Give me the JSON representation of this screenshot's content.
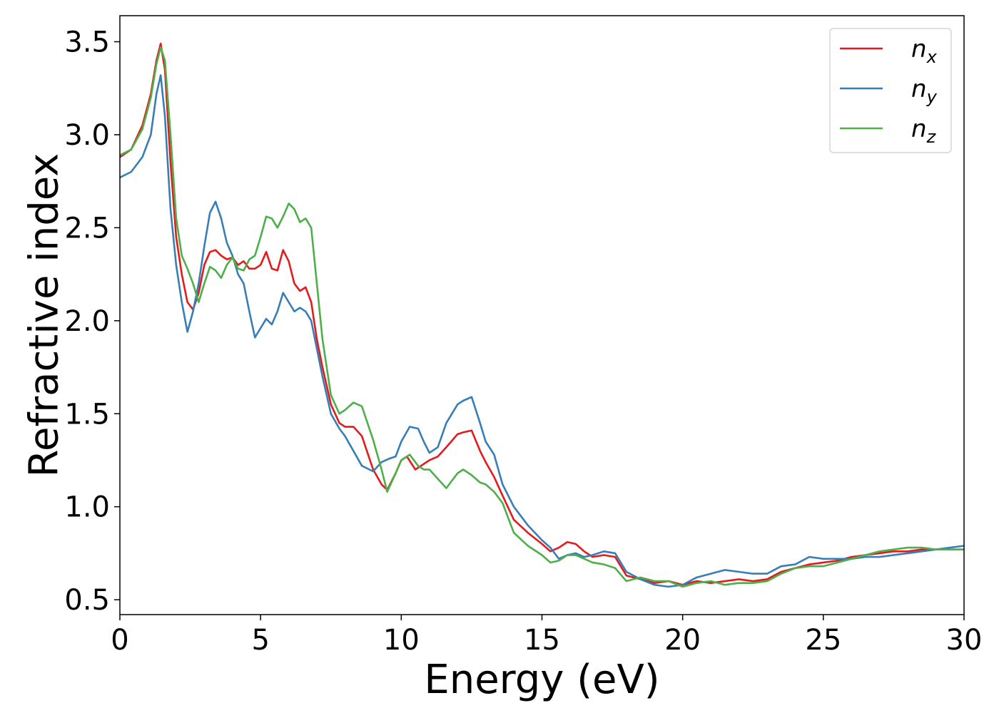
{
  "chart_data": {
    "type": "line",
    "title": "",
    "xlabel": "Energy (eV)",
    "ylabel": "Refractive index",
    "xlim": [
      0,
      30
    ],
    "ylim": [
      0.42,
      3.64
    ],
    "xticks": [
      0,
      5,
      10,
      15,
      20,
      25,
      30
    ],
    "yticks": [
      0.5,
      1.0,
      1.5,
      2.0,
      2.5,
      3.0,
      3.5
    ],
    "grid": false,
    "legend_position": "top-right",
    "series": [
      {
        "name": "n",
        "subscript": "x",
        "color": "#e41a1c",
        "x": [
          0,
          0.4,
          0.8,
          1.1,
          1.3,
          1.45,
          1.6,
          1.8,
          2.0,
          2.2,
          2.4,
          2.6,
          2.8,
          3.0,
          3.2,
          3.4,
          3.6,
          3.8,
          4.0,
          4.2,
          4.4,
          4.6,
          4.8,
          5.0,
          5.2,
          5.4,
          5.6,
          5.8,
          6.0,
          6.2,
          6.4,
          6.6,
          6.8,
          7.0,
          7.2,
          7.5,
          7.8,
          8.0,
          8.3,
          8.6,
          9.0,
          9.3,
          9.5,
          9.8,
          10.0,
          10.2,
          10.5,
          10.8,
          11.0,
          11.3,
          11.6,
          12.0,
          12.2,
          12.5,
          12.8,
          13.0,
          13.3,
          13.6,
          14.0,
          14.5,
          15.0,
          15.3,
          15.6,
          15.9,
          16.2,
          16.5,
          16.8,
          17.2,
          17.6,
          18.0,
          18.5,
          19.0,
          19.5,
          20.0,
          20.5,
          21.0,
          21.5,
          22.0,
          22.5,
          23.0,
          23.5,
          24.0,
          24.5,
          25.0,
          25.5,
          26.0,
          26.5,
          27.0,
          27.5,
          28.0,
          28.5,
          29.0,
          29.5,
          30.0
        ],
        "y": [
          2.88,
          2.92,
          3.05,
          3.22,
          3.4,
          3.49,
          3.35,
          2.85,
          2.45,
          2.25,
          2.1,
          2.06,
          2.15,
          2.3,
          2.37,
          2.38,
          2.35,
          2.33,
          2.34,
          2.3,
          2.32,
          2.28,
          2.28,
          2.3,
          2.37,
          2.28,
          2.27,
          2.38,
          2.32,
          2.2,
          2.16,
          2.18,
          2.1,
          1.9,
          1.75,
          1.55,
          1.45,
          1.43,
          1.43,
          1.38,
          1.2,
          1.12,
          1.09,
          1.18,
          1.25,
          1.27,
          1.2,
          1.23,
          1.25,
          1.27,
          1.32,
          1.39,
          1.4,
          1.41,
          1.3,
          1.24,
          1.16,
          1.06,
          0.93,
          0.86,
          0.8,
          0.76,
          0.78,
          0.81,
          0.8,
          0.76,
          0.73,
          0.74,
          0.73,
          0.63,
          0.61,
          0.59,
          0.6,
          0.58,
          0.6,
          0.59,
          0.6,
          0.61,
          0.6,
          0.61,
          0.65,
          0.67,
          0.69,
          0.7,
          0.71,
          0.73,
          0.74,
          0.75,
          0.76,
          0.76,
          0.77,
          0.77,
          0.77,
          0.77
        ]
      },
      {
        "name": "n",
        "subscript": "y",
        "color": "#377eb8",
        "x": [
          0,
          0.4,
          0.8,
          1.1,
          1.3,
          1.45,
          1.6,
          1.8,
          2.0,
          2.2,
          2.4,
          2.6,
          2.8,
          3.0,
          3.2,
          3.4,
          3.6,
          3.8,
          4.0,
          4.2,
          4.4,
          4.6,
          4.8,
          5.0,
          5.2,
          5.4,
          5.6,
          5.8,
          6.0,
          6.2,
          6.4,
          6.6,
          6.8,
          7.0,
          7.2,
          7.5,
          7.8,
          8.0,
          8.3,
          8.6,
          9.0,
          9.3,
          9.6,
          9.8,
          10.0,
          10.3,
          10.6,
          10.8,
          11.0,
          11.3,
          11.6,
          12.0,
          12.2,
          12.5,
          12.8,
          13.0,
          13.3,
          13.6,
          14.0,
          14.5,
          15.0,
          15.3,
          15.6,
          15.9,
          16.2,
          16.5,
          16.8,
          17.2,
          17.6,
          18.0,
          18.5,
          19.0,
          19.5,
          20.0,
          20.5,
          21.0,
          21.5,
          22.0,
          22.5,
          23.0,
          23.5,
          24.0,
          24.5,
          25.0,
          25.5,
          26.0,
          26.5,
          27.0,
          27.5,
          28.0,
          28.5,
          29.0,
          29.5,
          30.0
        ],
        "y": [
          2.77,
          2.8,
          2.88,
          3.0,
          3.22,
          3.32,
          3.1,
          2.6,
          2.3,
          2.1,
          1.94,
          2.05,
          2.2,
          2.4,
          2.58,
          2.64,
          2.55,
          2.42,
          2.35,
          2.25,
          2.2,
          2.05,
          1.91,
          1.96,
          2.01,
          1.98,
          2.05,
          2.15,
          2.1,
          2.05,
          2.07,
          2.05,
          2.0,
          1.85,
          1.7,
          1.5,
          1.42,
          1.38,
          1.3,
          1.22,
          1.19,
          1.24,
          1.26,
          1.27,
          1.35,
          1.43,
          1.42,
          1.35,
          1.29,
          1.32,
          1.45,
          1.55,
          1.57,
          1.59,
          1.45,
          1.35,
          1.28,
          1.12,
          1.0,
          0.9,
          0.82,
          0.78,
          0.72,
          0.74,
          0.75,
          0.73,
          0.74,
          0.76,
          0.75,
          0.65,
          0.61,
          0.58,
          0.57,
          0.58,
          0.62,
          0.64,
          0.66,
          0.65,
          0.64,
          0.64,
          0.68,
          0.69,
          0.73,
          0.72,
          0.72,
          0.72,
          0.73,
          0.73,
          0.74,
          0.75,
          0.76,
          0.77,
          0.78,
          0.79
        ]
      },
      {
        "name": "n",
        "subscript": "z",
        "color": "#4daf4a",
        "x": [
          0,
          0.4,
          0.8,
          1.1,
          1.3,
          1.45,
          1.6,
          1.8,
          2.0,
          2.2,
          2.4,
          2.6,
          2.8,
          3.0,
          3.2,
          3.4,
          3.6,
          3.8,
          4.0,
          4.2,
          4.4,
          4.6,
          4.8,
          5.0,
          5.2,
          5.4,
          5.6,
          5.8,
          6.0,
          6.2,
          6.4,
          6.6,
          6.8,
          7.0,
          7.2,
          7.5,
          7.8,
          8.0,
          8.3,
          8.6,
          9.0,
          9.3,
          9.5,
          9.8,
          10.0,
          10.3,
          10.6,
          10.8,
          11.0,
          11.3,
          11.6,
          12.0,
          12.2,
          12.5,
          12.8,
          13.0,
          13.3,
          13.6,
          14.0,
          14.5,
          15.0,
          15.3,
          15.6,
          15.9,
          16.2,
          16.5,
          16.8,
          17.2,
          17.6,
          18.0,
          18.5,
          19.0,
          19.5,
          20.0,
          20.5,
          21.0,
          21.5,
          22.0,
          22.5,
          23.0,
          23.5,
          24.0,
          24.5,
          25.0,
          25.5,
          26.0,
          26.5,
          27.0,
          27.5,
          28.0,
          28.5,
          29.0,
          29.5,
          30.0
        ],
        "y": [
          2.89,
          2.92,
          3.03,
          3.2,
          3.38,
          3.47,
          3.4,
          3.0,
          2.55,
          2.35,
          2.28,
          2.2,
          2.1,
          2.2,
          2.29,
          2.27,
          2.23,
          2.3,
          2.34,
          2.28,
          2.27,
          2.33,
          2.35,
          2.45,
          2.56,
          2.55,
          2.5,
          2.56,
          2.63,
          2.6,
          2.53,
          2.55,
          2.5,
          2.2,
          1.9,
          1.6,
          1.5,
          1.52,
          1.56,
          1.54,
          1.36,
          1.2,
          1.08,
          1.18,
          1.25,
          1.28,
          1.22,
          1.2,
          1.2,
          1.15,
          1.1,
          1.18,
          1.2,
          1.17,
          1.13,
          1.12,
          1.08,
          1.02,
          0.86,
          0.79,
          0.74,
          0.7,
          0.71,
          0.74,
          0.74,
          0.72,
          0.7,
          0.69,
          0.67,
          0.6,
          0.62,
          0.6,
          0.6,
          0.57,
          0.59,
          0.6,
          0.58,
          0.59,
          0.59,
          0.6,
          0.64,
          0.67,
          0.68,
          0.68,
          0.7,
          0.72,
          0.74,
          0.76,
          0.77,
          0.78,
          0.78,
          0.77,
          0.77,
          0.77
        ]
      }
    ]
  }
}
